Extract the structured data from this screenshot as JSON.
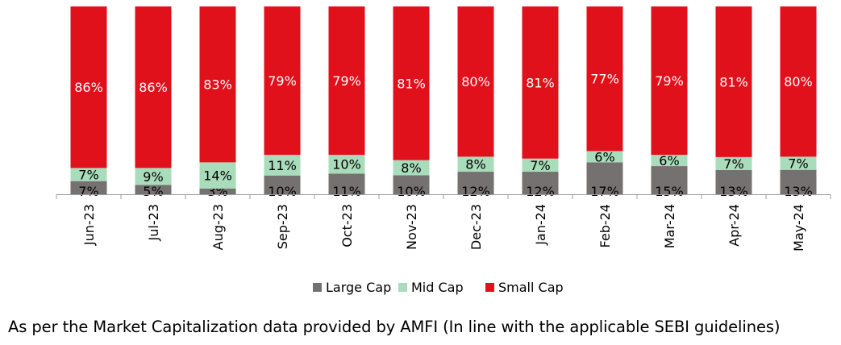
{
  "chart_data": {
    "type": "bar",
    "stacked": true,
    "normalized_percent": true,
    "categories": [
      "Jun-23",
      "Jul-23",
      "Aug-23",
      "Sep-23",
      "Oct-23",
      "Nov-23",
      "Dec-23",
      "Jan-24",
      "Feb-24",
      "Mar-24",
      "Apr-24",
      "May-24"
    ],
    "series": [
      {
        "name": "Large Cap",
        "color": "#767171",
        "values": [
          7,
          5,
          3,
          10,
          11,
          10,
          12,
          12,
          17,
          15,
          13,
          13
        ]
      },
      {
        "name": "Mid Cap",
        "color": "#a9dcba",
        "values": [
          7,
          9,
          14,
          11,
          10,
          8,
          8,
          7,
          6,
          6,
          7,
          7
        ]
      },
      {
        "name": "Small Cap",
        "color": "#e0111b",
        "values": [
          86,
          86,
          83,
          79,
          79,
          81,
          80,
          81,
          77,
          79,
          81,
          80
        ]
      }
    ],
    "legend_position": "bottom-center",
    "grid": false,
    "ylim": [
      0,
      100
    ],
    "xlabel": "",
    "ylabel": ""
  },
  "footnote": "As per the Market Capitalization data provided by AMFI (In line with the applicable SEBI guidelines)"
}
